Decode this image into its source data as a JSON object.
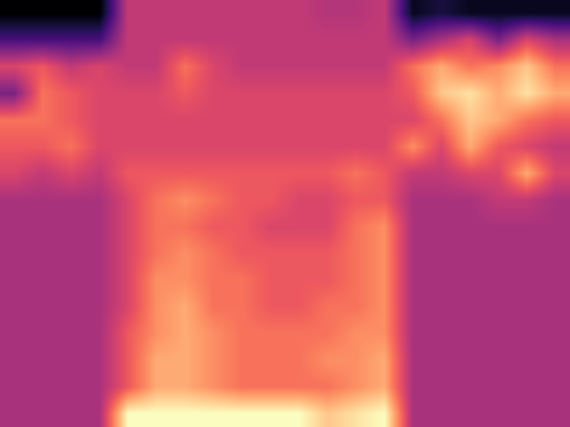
{
  "chart_data": {
    "type": "heatmap",
    "tick_labels": false,
    "cells": [
      [
        0.0,
        0.0,
        0.0,
        0.0,
        0.45,
        0.45,
        0.45,
        0.45,
        0.45,
        0.45,
        0.45,
        0.42,
        0.42,
        0.45,
        0.05,
        0.1,
        0.05,
        0.05,
        0.05,
        0.05
      ],
      [
        0.2,
        0.2,
        0.2,
        0.2,
        0.45,
        0.45,
        0.45,
        0.45,
        0.45,
        0.45,
        0.45,
        0.45,
        0.45,
        0.45,
        0.3,
        0.4,
        0.5,
        0.3,
        0.5,
        0.4
      ],
      [
        0.5,
        0.55,
        0.45,
        0.5,
        0.45,
        0.45,
        0.6,
        0.5,
        0.45,
        0.45,
        0.45,
        0.45,
        0.45,
        0.45,
        0.6,
        0.7,
        0.6,
        0.65,
        0.75,
        0.6
      ],
      [
        0.3,
        0.6,
        0.55,
        0.5,
        0.5,
        0.5,
        0.55,
        0.5,
        0.5,
        0.5,
        0.5,
        0.5,
        0.5,
        0.5,
        0.55,
        0.75,
        0.8,
        0.7,
        0.8,
        0.7
      ],
      [
        0.6,
        0.6,
        0.55,
        0.5,
        0.5,
        0.5,
        0.5,
        0.5,
        0.5,
        0.5,
        0.5,
        0.5,
        0.5,
        0.5,
        0.5,
        0.6,
        0.75,
        0.7,
        0.6,
        0.55
      ],
      [
        0.55,
        0.55,
        0.6,
        0.5,
        0.5,
        0.5,
        0.5,
        0.5,
        0.5,
        0.5,
        0.5,
        0.5,
        0.5,
        0.5,
        0.65,
        0.5,
        0.7,
        0.55,
        0.5,
        0.45
      ],
      [
        0.5,
        0.45,
        0.5,
        0.45,
        0.55,
        0.55,
        0.55,
        0.55,
        0.55,
        0.55,
        0.55,
        0.55,
        0.6,
        0.55,
        0.45,
        0.45,
        0.5,
        0.5,
        0.7,
        0.5
      ],
      [
        0.4,
        0.4,
        0.4,
        0.4,
        0.5,
        0.6,
        0.65,
        0.6,
        0.55,
        0.55,
        0.5,
        0.5,
        0.55,
        0.55,
        0.4,
        0.4,
        0.4,
        0.45,
        0.45,
        0.4
      ],
      [
        0.4,
        0.4,
        0.4,
        0.4,
        0.5,
        0.6,
        0.6,
        0.55,
        0.55,
        0.5,
        0.5,
        0.5,
        0.6,
        0.65,
        0.4,
        0.4,
        0.4,
        0.4,
        0.4,
        0.4
      ],
      [
        0.4,
        0.4,
        0.4,
        0.4,
        0.5,
        0.6,
        0.65,
        0.6,
        0.55,
        0.55,
        0.55,
        0.55,
        0.6,
        0.65,
        0.4,
        0.4,
        0.4,
        0.4,
        0.4,
        0.4
      ],
      [
        0.4,
        0.4,
        0.4,
        0.4,
        0.5,
        0.65,
        0.65,
        0.6,
        0.6,
        0.55,
        0.55,
        0.55,
        0.6,
        0.65,
        0.4,
        0.4,
        0.4,
        0.4,
        0.4,
        0.4
      ],
      [
        0.4,
        0.4,
        0.4,
        0.4,
        0.5,
        0.65,
        0.7,
        0.6,
        0.6,
        0.55,
        0.55,
        0.6,
        0.6,
        0.65,
        0.4,
        0.4,
        0.4,
        0.4,
        0.4,
        0.4
      ],
      [
        0.4,
        0.4,
        0.4,
        0.4,
        0.55,
        0.65,
        0.7,
        0.65,
        0.6,
        0.6,
        0.6,
        0.6,
        0.65,
        0.65,
        0.4,
        0.4,
        0.4,
        0.4,
        0.4,
        0.4
      ],
      [
        0.4,
        0.4,
        0.4,
        0.4,
        0.55,
        0.7,
        0.7,
        0.65,
        0.6,
        0.6,
        0.6,
        0.65,
        0.65,
        0.7,
        0.4,
        0.4,
        0.4,
        0.4,
        0.4,
        0.4
      ],
      [
        0.4,
        0.4,
        0.4,
        0.4,
        0.55,
        0.7,
        0.7,
        0.65,
        0.6,
        0.6,
        0.6,
        0.6,
        0.65,
        0.7,
        0.4,
        0.4,
        0.4,
        0.4,
        0.4,
        0.4
      ],
      [
        0.4,
        0.4,
        0.4,
        0.4,
        0.85,
        0.85,
        0.85,
        0.85,
        0.85,
        0.85,
        0.85,
        0.75,
        0.8,
        0.85,
        0.4,
        0.4,
        0.4,
        0.4,
        0.4,
        0.4
      ]
    ]
  }
}
